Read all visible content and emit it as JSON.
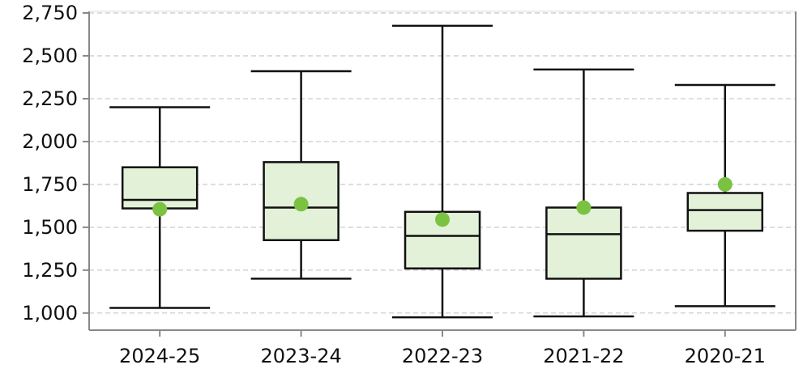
{
  "chart_data": {
    "type": "boxplot",
    "title": "",
    "xlabel": "",
    "ylabel": "",
    "ylim": [
      900,
      2750
    ],
    "yticks": [
      1000,
      1250,
      1500,
      1750,
      2000,
      2250,
      2500,
      2750
    ],
    "ytick_labels": [
      "1,000",
      "1,250",
      "1,500",
      "1,750",
      "2,000",
      "2,250",
      "2,500",
      "2,750"
    ],
    "grid": true,
    "categories": [
      "2024-25",
      "2023-24",
      "2022-23",
      "2021-22",
      "2020-21"
    ],
    "boxes": [
      {
        "min": 1030,
        "q1": 1610,
        "median": 1660,
        "q3": 1850,
        "max": 2200,
        "mean": 1605
      },
      {
        "min": 1200,
        "q1": 1425,
        "median": 1615,
        "q3": 1880,
        "max": 2410,
        "mean": 1635
      },
      {
        "min": 975,
        "q1": 1260,
        "median": 1450,
        "q3": 1590,
        "max": 2675,
        "mean": 1545
      },
      {
        "min": 980,
        "q1": 1200,
        "median": 1460,
        "q3": 1615,
        "max": 2420,
        "mean": 1615
      },
      {
        "min": 1040,
        "q1": 1480,
        "median": 1600,
        "q3": 1700,
        "max": 2330,
        "mean": 1750
      }
    ],
    "colors": {
      "box_fill": "#e3f1d9",
      "box_stroke": "#111111",
      "mean_marker": "#7cc242",
      "grid": "#c8c8c8",
      "axis": "#888888"
    }
  }
}
